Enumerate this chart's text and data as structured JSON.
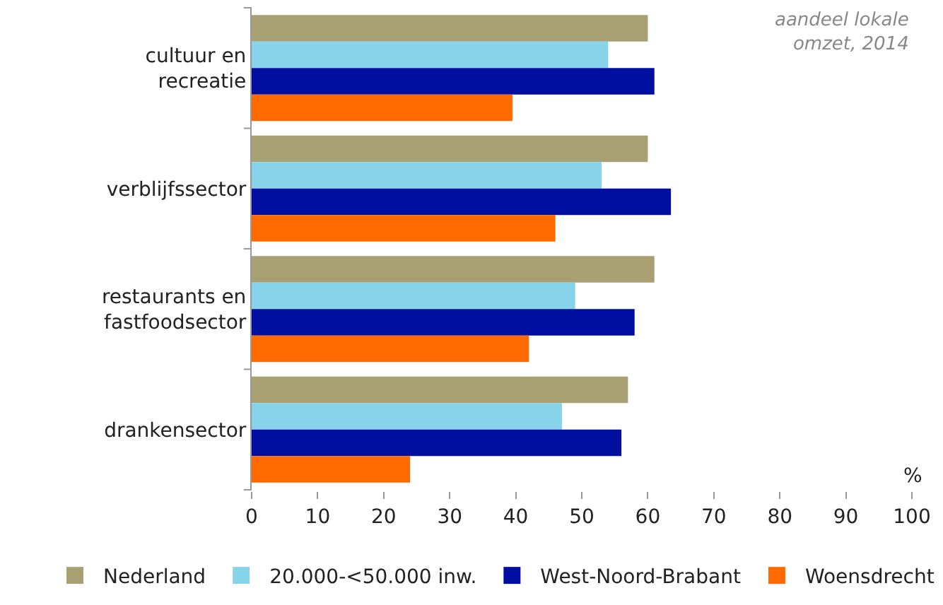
{
  "chart_data": {
    "type": "bar",
    "orientation": "horizontal",
    "categories": [
      "cultuur en recreatie",
      "verblijfssector",
      "restaurants en fastfoodsector",
      "drankensector"
    ],
    "series": [
      {
        "name": "Nederland",
        "color": "#a89f73",
        "values": [
          60,
          60,
          61,
          57
        ]
      },
      {
        "name": "20.000-<50.000 inw.",
        "color": "#87d3ea",
        "values": [
          54,
          53,
          49,
          47
        ]
      },
      {
        "name": "West-Noord-Brabant",
        "color": "#000f9f",
        "values": [
          61,
          63.5,
          58,
          56
        ]
      },
      {
        "name": "Woensdrecht",
        "color": "#ff6a00",
        "values": [
          39.5,
          46,
          42,
          24
        ]
      }
    ],
    "xlim": [
      0,
      100
    ],
    "xticks": [
      0,
      10,
      20,
      30,
      40,
      50,
      60,
      70,
      80,
      90,
      100
    ],
    "xlabel": "%",
    "grid": false,
    "legend": "bottom",
    "annotations": [
      "aandeel lokale omzet, 2014"
    ]
  }
}
